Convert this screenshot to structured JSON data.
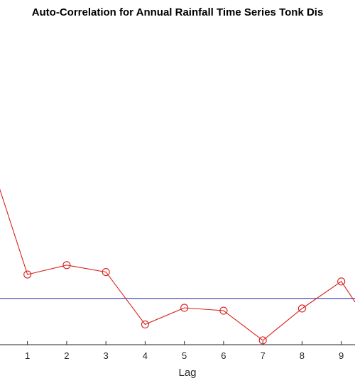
{
  "chart_data": {
    "type": "line",
    "title": "Auto-Correlation for Annual Rainfall Time Series Tonk Dis",
    "xlabel": "Lag",
    "ylabel": "",
    "x": [
      0,
      1,
      2,
      3,
      4,
      5,
      6,
      7,
      8,
      9,
      9.35
    ],
    "series": [
      {
        "values": [
          1.0,
          0.165,
          0.23,
          0.182,
          -0.18,
          -0.065,
          -0.085,
          -0.29,
          -0.07,
          0.117,
          -0.025
        ],
        "color": "#d9211d",
        "marker": "circle"
      }
    ],
    "zero_line": {
      "value": 0.0,
      "color": "#2b2bb0"
    },
    "xticks": [
      "1",
      "2",
      "3",
      "4",
      "5",
      "6",
      "7",
      "8",
      "9"
    ],
    "xlim": [
      0.3,
      9.35
    ],
    "ylim": [
      -0.32,
      1.9
    ],
    "grid": false,
    "legend": "none"
  }
}
